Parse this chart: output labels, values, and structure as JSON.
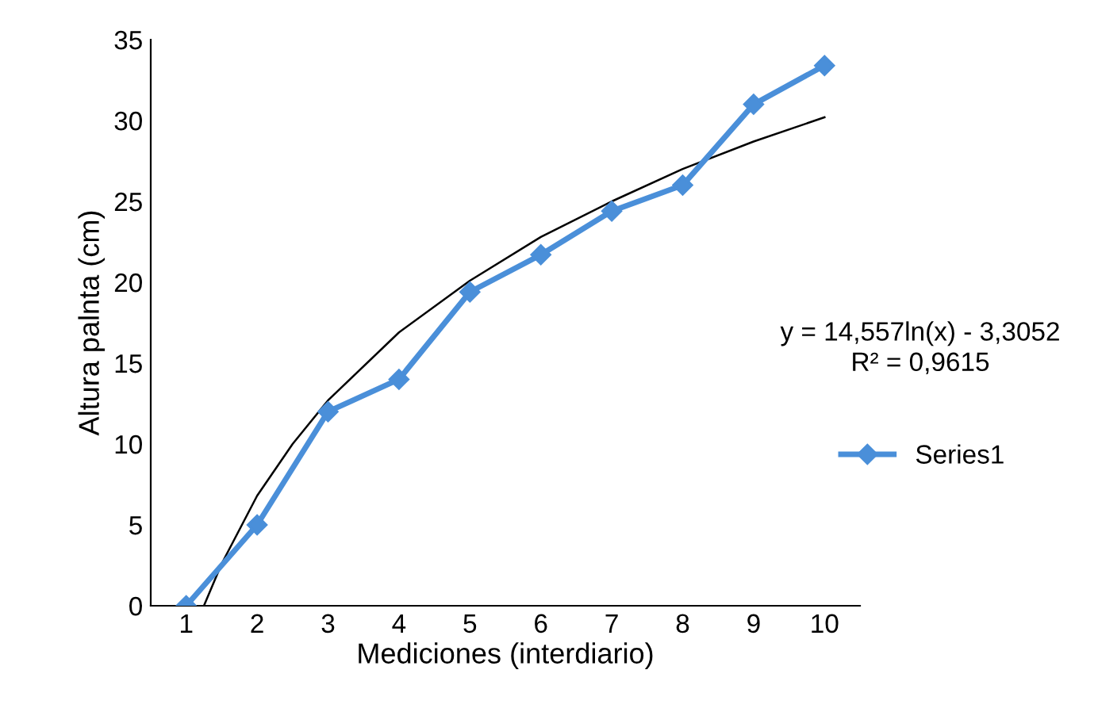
{
  "chart_data": {
    "type": "line",
    "xlabel": "Mediciones (interdiario)",
    "ylabel": "Altura palnta (cm)",
    "x": [
      1,
      2,
      3,
      4,
      5,
      6,
      7,
      8,
      9,
      10
    ],
    "xlim": [
      0.5,
      10.5
    ],
    "xticks": [
      1,
      2,
      3,
      4,
      5,
      6,
      7,
      8,
      9,
      10
    ],
    "ylim": [
      0,
      35
    ],
    "yticks": [
      0,
      5,
      10,
      15,
      20,
      25,
      30,
      35
    ],
    "grid": false,
    "legend": "right",
    "marker": "diamond",
    "line_style": "solid",
    "series": [
      {
        "name": "Series1",
        "color": "#4a8fd9",
        "values": [
          0,
          5,
          12,
          14,
          19.4,
          21.7,
          24.4,
          26,
          31,
          33.4
        ]
      },
      {
        "type": "line",
        "color": "#000000",
        "marker": "none",
        "x": [
          1.25,
          1.5,
          2,
          2.5,
          3,
          4,
          5,
          6,
          7,
          8,
          9,
          10
        ],
        "values": [
          0,
          2.6,
          6.8,
          10.0,
          12.7,
          16.9,
          20.1,
          22.8,
          25.0,
          27.0,
          28.7,
          30.2
        ]
      }
    ],
    "annotations": [
      "y = 14,557ln(x) - 3,3052\nR² = 0,9615"
    ]
  }
}
